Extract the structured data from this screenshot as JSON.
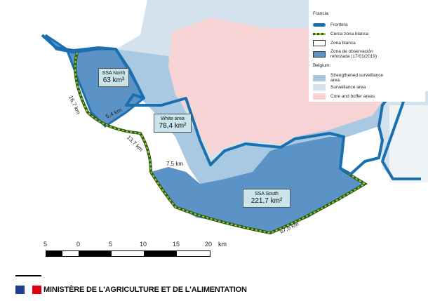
{
  "legend": {
    "france_heading": "Francia:",
    "items_france": [
      {
        "label": "Frontera",
        "color": "#1a6fb0"
      },
      {
        "label": "Cerca zona blanca",
        "color": "#6aa030"
      },
      {
        "label": "Zona blanca",
        "color": "#ffffff"
      },
      {
        "label": "Zona de observación reforzada (17/01/2019)",
        "color": "#5b93c7"
      }
    ],
    "belgium_heading": "Belgium:",
    "items_belgium": [
      {
        "label": "Strengthened surveillance area",
        "color": "#a9c8e2"
      },
      {
        "label": "Surveillance area",
        "color": "#d3e2ec"
      },
      {
        "label": "Core and buffer areas",
        "color": "#f8d3d6"
      }
    ]
  },
  "zones": {
    "ssa_north": {
      "name": "SSA North",
      "area": "63 km²"
    },
    "white_area": {
      "name": "White area",
      "area": "78,4 km²"
    },
    "ssa_south": {
      "name": "SSA South",
      "area": "221,7 km²"
    }
  },
  "distances": [
    "16,7 km",
    "5,4 km",
    "13,7 km",
    "7,5 km",
    "57,6 km"
  ],
  "scale": {
    "ticks": [
      "5",
      "0",
      "5",
      "10",
      "15",
      "20"
    ],
    "unit": "km"
  },
  "footer": {
    "ministry": "MINISTÈRE DE L'AGRICULTURE ET DE L'ALIMENTATION"
  }
}
